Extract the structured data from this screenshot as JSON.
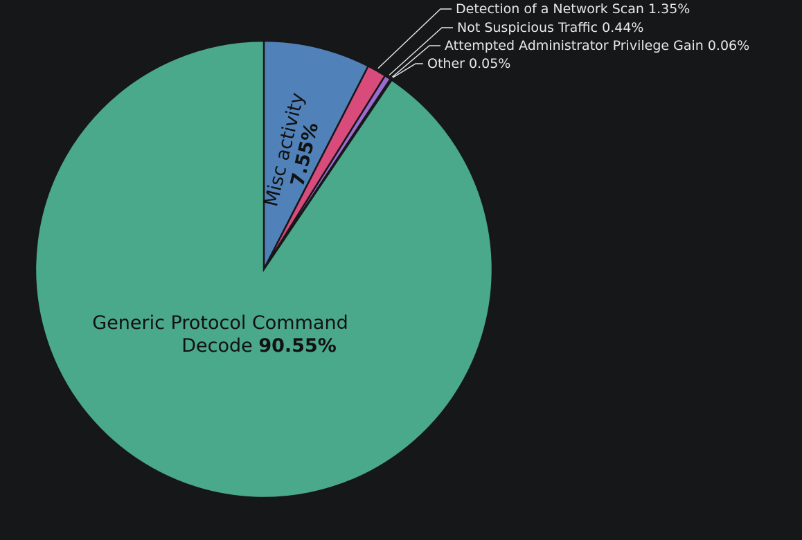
{
  "chart_data": {
    "type": "pie",
    "start_angle_deg": -90,
    "direction": "clockwise",
    "slices": [
      {
        "name": "Misc activity",
        "value": 7.55,
        "pct_label": "7.55%",
        "color": "#5081b9",
        "label_style": "inside-rotated"
      },
      {
        "name": "Detection of a Network Scan",
        "value": 1.35,
        "pct_label": "1.35%",
        "color": "#d94b7b",
        "label_style": "outside"
      },
      {
        "name": "Not Suspicious Traffic",
        "value": 0.44,
        "pct_label": "0.44%",
        "color": "#9b6bd0",
        "label_style": "outside"
      },
      {
        "name": "Attempted Administrator Privilege Gain",
        "value": 0.06,
        "pct_label": "0.06%",
        "color": "#5aa0d6",
        "label_style": "outside"
      },
      {
        "name": "Other",
        "value": 0.05,
        "pct_label": "0.05%",
        "color": "#7aa7cf",
        "label_style": "outside"
      },
      {
        "name": "Generic Protocol Command Decode",
        "value": 90.55,
        "pct_label": "90.55%",
        "color": "#4aa98a",
        "label_style": "inside",
        "label_lines": [
          "Generic Protocol Command",
          "Decode"
        ]
      }
    ]
  }
}
